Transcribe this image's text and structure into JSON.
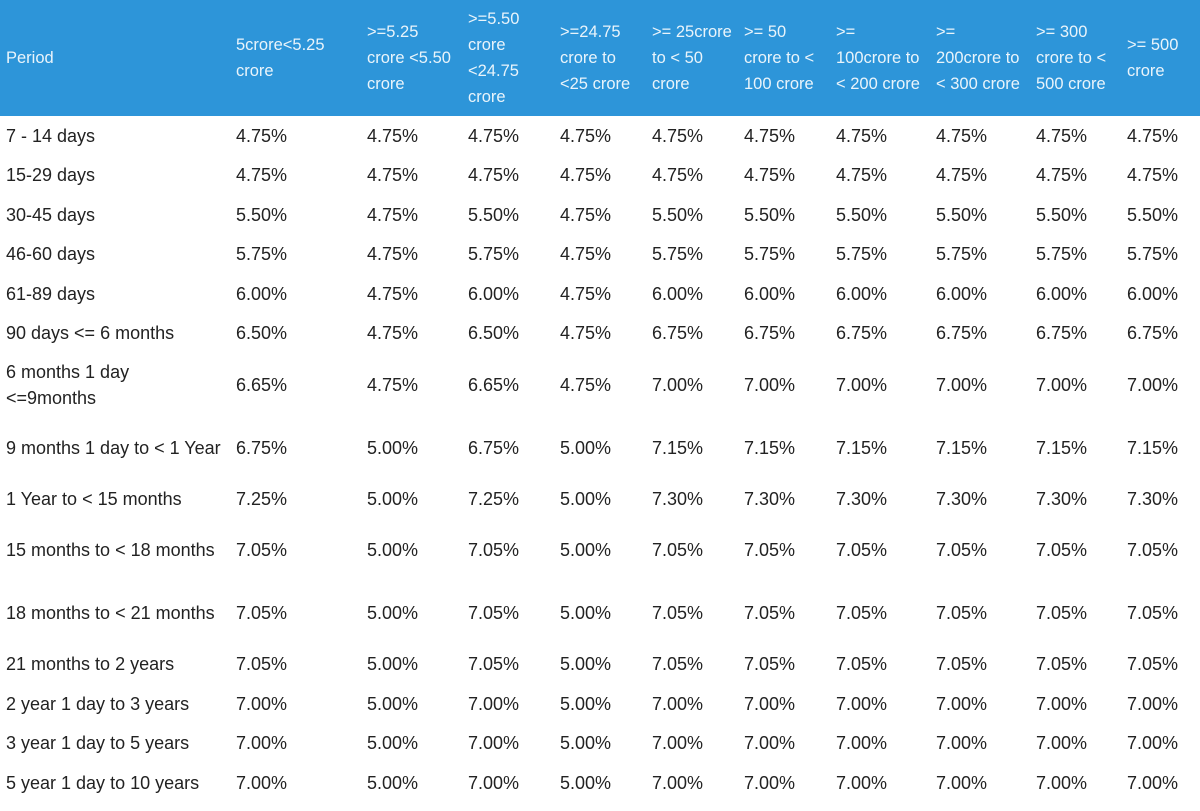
{
  "table": {
    "headers": [
      "Period",
      "5crore<5.25 crore",
      ">=5.25 crore <5.50 crore",
      ">=5.50 crore <24.75 crore",
      ">=24.75 crore to <25 crore",
      ">= 25crore to < 50 crore",
      ">= 50 crore to < 100 crore",
      ">= 100crore to < 200 crore",
      ">= 200crore to < 300 crore",
      ">= 300 crore to < 500 crore",
      ">= 500 crore"
    ],
    "rows": [
      [
        "7 - 14 days",
        "4.75%",
        "4.75%",
        "4.75%",
        "4.75%",
        "4.75%",
        "4.75%",
        "4.75%",
        "4.75%",
        "4.75%",
        "4.75%"
      ],
      [
        "15-29 days",
        "4.75%",
        "4.75%",
        "4.75%",
        "4.75%",
        "4.75%",
        "4.75%",
        "4.75%",
        "4.75%",
        "4.75%",
        "4.75%"
      ],
      [
        "30-45 days",
        "5.50%",
        "4.75%",
        "5.50%",
        "4.75%",
        "5.50%",
        "5.50%",
        "5.50%",
        "5.50%",
        "5.50%",
        "5.50%"
      ],
      [
        "46-60 days",
        "5.75%",
        "4.75%",
        "5.75%",
        "4.75%",
        "5.75%",
        "5.75%",
        "5.75%",
        "5.75%",
        "5.75%",
        "5.75%"
      ],
      [
        "61-89 days",
        "6.00%",
        "4.75%",
        "6.00%",
        "4.75%",
        "6.00%",
        "6.00%",
        "6.00%",
        "6.00%",
        "6.00%",
        "6.00%"
      ],
      [
        "90 days <= 6 months",
        "6.50%",
        "4.75%",
        "6.50%",
        "4.75%",
        "6.75%",
        "6.75%",
        "6.75%",
        "6.75%",
        "6.75%",
        "6.75%"
      ],
      [
        "6 months 1 day <=9months",
        "6.65%",
        "4.75%",
        "6.65%",
        "4.75%",
        "7.00%",
        "7.00%",
        "7.00%",
        "7.00%",
        "7.00%",
        "7.00%"
      ],
      [
        "9 months 1 day to < 1 Year",
        "6.75%",
        "5.00%",
        "6.75%",
        "5.00%",
        "7.15%",
        "7.15%",
        "7.15%",
        "7.15%",
        "7.15%",
        "7.15%"
      ],
      [
        "1 Year to < 15 months",
        "7.25%",
        "5.00%",
        "7.25%",
        "5.00%",
        "7.30%",
        "7.30%",
        "7.30%",
        "7.30%",
        "7.30%",
        "7.30%"
      ],
      [
        "15 months to < 18 months",
        "7.05%",
        "5.00%",
        "7.05%",
        "5.00%",
        "7.05%",
        "7.05%",
        "7.05%",
        "7.05%",
        "7.05%",
        "7.05%"
      ],
      [
        "18 months to < 21 months",
        "7.05%",
        "5.00%",
        "7.05%",
        "5.00%",
        "7.05%",
        "7.05%",
        "7.05%",
        "7.05%",
        "7.05%",
        "7.05%"
      ],
      [
        "21 months to 2 years",
        "7.05%",
        "5.00%",
        "7.05%",
        "5.00%",
        "7.05%",
        "7.05%",
        "7.05%",
        "7.05%",
        "7.05%",
        "7.05%"
      ],
      [
        "2 year 1 day to 3 years",
        "7.00%",
        "5.00%",
        "7.00%",
        "5.00%",
        "7.00%",
        "7.00%",
        "7.00%",
        "7.00%",
        "7.00%",
        "7.00%"
      ],
      [
        "3 year 1 day to 5 years",
        "7.00%",
        "5.00%",
        "7.00%",
        "5.00%",
        "7.00%",
        "7.00%",
        "7.00%",
        "7.00%",
        "7.00%",
        "7.00%"
      ],
      [
        "5 year 1 day to 10 years",
        "7.00%",
        "5.00%",
        "7.00%",
        "5.00%",
        "7.00%",
        "7.00%",
        "7.00%",
        "7.00%",
        "7.00%",
        "7.00%"
      ]
    ]
  },
  "colors": {
    "header_background": "#2d95d9",
    "header_text": "#e9f4fb",
    "body_text": "#222222"
  }
}
